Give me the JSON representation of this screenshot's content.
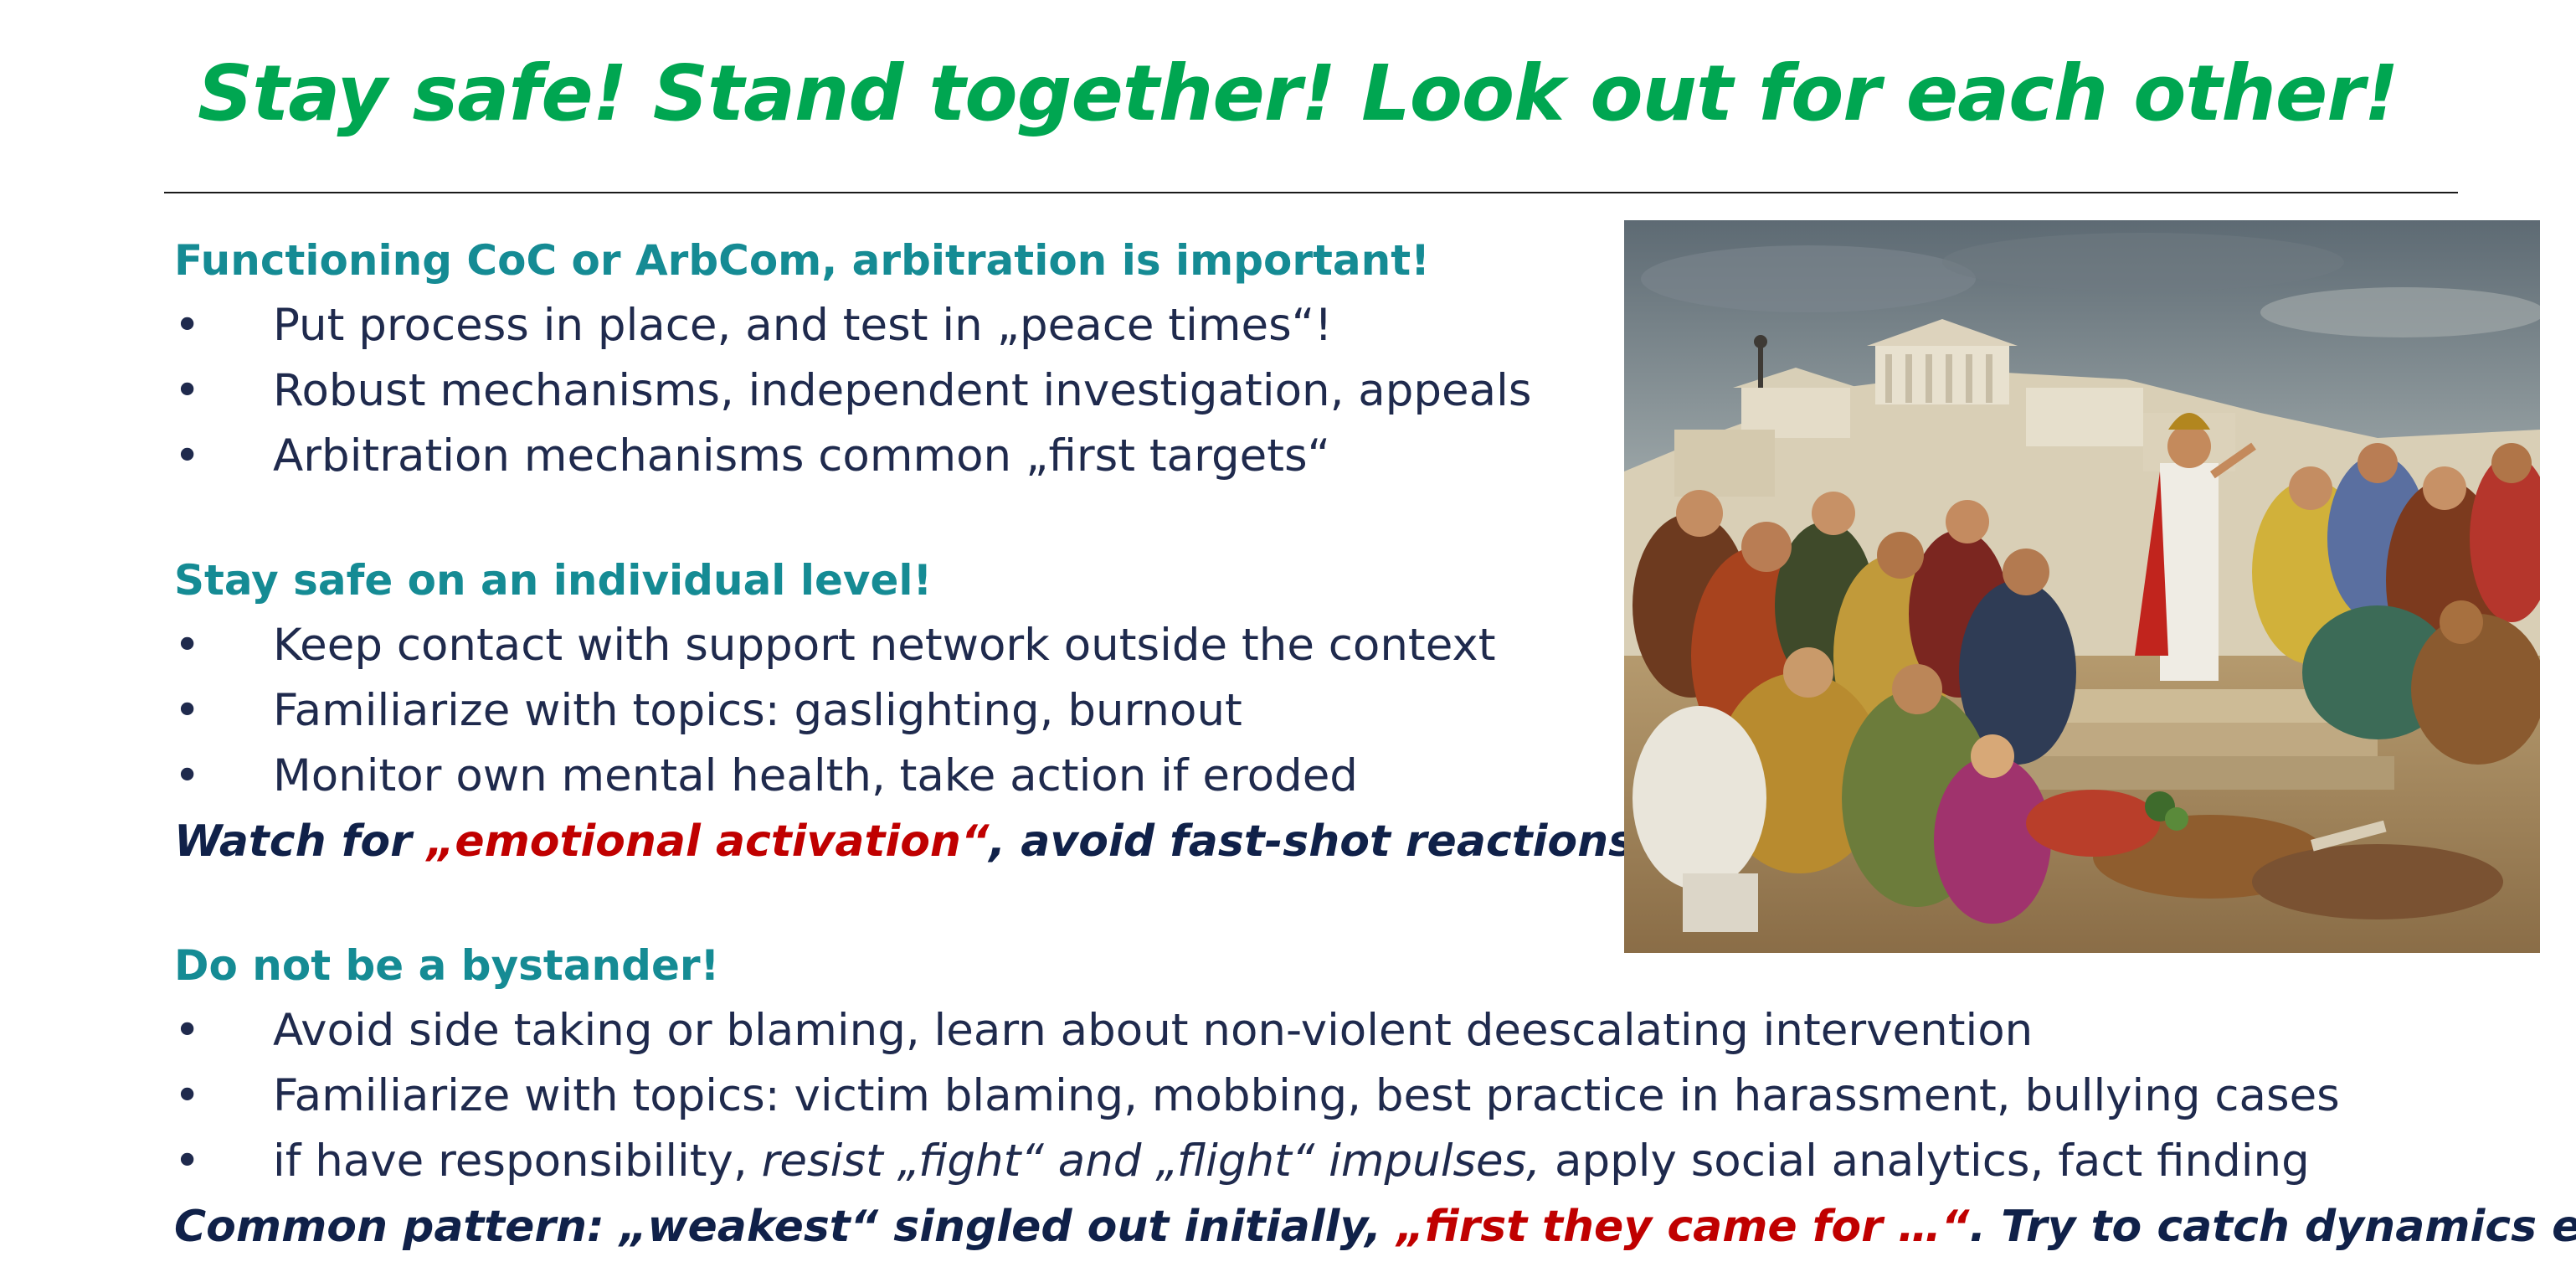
{
  "title": "Stay safe! Stand together! Look out for each other!",
  "sections": [
    {
      "heading": "Functioning CoC or ArbCom, arbitration is important!",
      "bullets": [
        "Put process in place, and test in „peace times“!",
        "Robust mechanisms, independent investigation, appeals",
        "Arbitration mechanisms common „first targets“"
      ]
    },
    {
      "heading": "Stay safe on an individual level!",
      "bullets": [
        "Keep contact with support network outside the context",
        "Familiarize with topics: gaslighting, burnout",
        "Monitor own mental health, take action if eroded"
      ],
      "note": {
        "part1": "Watch for ",
        "part2": "„emotional activation“",
        "part3": ", avoid fast-shot reactions"
      }
    },
    {
      "heading": "Do not be a bystander!",
      "bullets": [
        "Avoid side taking or blaming, learn about non-violent deescalating intervention",
        "Familiarize with topics: victim blaming, mobbing, best practice in harassment, bullying cases"
      ],
      "mixed_bullet": {
        "part1": "if have responsibility, ",
        "part2": "resist „fight“ and „flight“ impulses,",
        "part3": " apply social analytics, fact finding"
      },
      "note": {
        "part1": "Common pattern: „weakest“ singled out initially, ",
        "part2": "„first they came for …“",
        "part3": ". Try to catch dynamics early"
      }
    }
  ],
  "bullet_glyph": "•",
  "image": {
    "icon": "painting-image"
  },
  "colors": {
    "title": "#00a651",
    "heading": "#158b94",
    "body": "#1f2a4d",
    "emphasis": "#102149",
    "highlight": "#c00000"
  }
}
